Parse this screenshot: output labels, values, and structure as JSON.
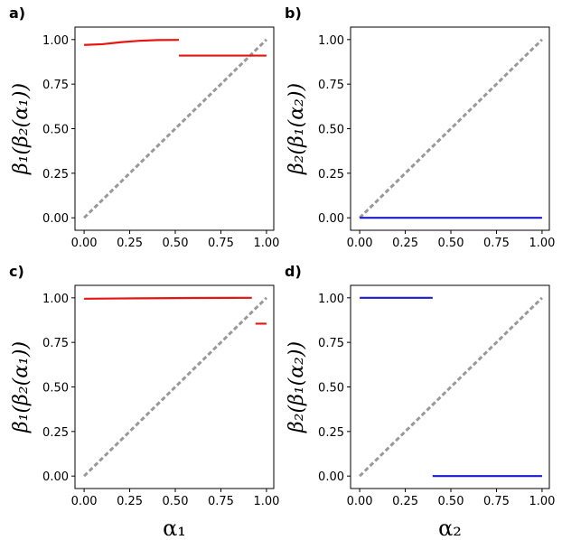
{
  "chart_data": [
    {
      "type": "line",
      "title": "a)",
      "ylabel": "β₁(β₂(α₁))",
      "xlim": [
        -0.05,
        1.04
      ],
      "ylim": [
        -0.07,
        1.07
      ],
      "xticks": [
        {
          "value": 0,
          "label": "0.00"
        },
        {
          "value": 0.25,
          "label": "0.25"
        },
        {
          "value": 0.5,
          "label": "0.50"
        },
        {
          "value": 0.75,
          "label": "0.75"
        },
        {
          "value": 1,
          "label": "1.00"
        }
      ],
      "yticks": [
        {
          "value": 0,
          "label": "0.00"
        },
        {
          "value": 0.25,
          "label": "0.25"
        },
        {
          "value": 0.5,
          "label": "0.50"
        },
        {
          "value": 0.75,
          "label": "0.75"
        },
        {
          "value": 1,
          "label": "1.00"
        }
      ],
      "series": [
        {
          "color": "#999999",
          "dashed": true,
          "x": [
            0,
            1
          ],
          "values": [
            0,
            1
          ]
        },
        {
          "color": "#e8140f",
          "dashed": false,
          "x": [
            0,
            0.1,
            0.2,
            0.3,
            0.4,
            0.52,
            0.52,
            0.52,
            1.0
          ],
          "values": [
            0.97,
            0.974,
            0.985,
            0.993,
            0.997,
            0.998,
            null,
            0.91,
            0.91
          ]
        }
      ]
    },
    {
      "type": "line",
      "title": "b)",
      "ylabel": "β₂(β₁(α₂))",
      "xlim": [
        -0.05,
        1.04
      ],
      "ylim": [
        -0.07,
        1.07
      ],
      "xticks": [
        {
          "value": 0,
          "label": "0.00"
        },
        {
          "value": 0.25,
          "label": "0.25"
        },
        {
          "value": 0.5,
          "label": "0.50"
        },
        {
          "value": 0.75,
          "label": "0.75"
        },
        {
          "value": 1,
          "label": "1.00"
        }
      ],
      "yticks": [
        {
          "value": 0,
          "label": "0.00"
        },
        {
          "value": 0.25,
          "label": "0.25"
        },
        {
          "value": 0.5,
          "label": "0.50"
        },
        {
          "value": 0.75,
          "label": "0.75"
        },
        {
          "value": 1,
          "label": "1.00"
        }
      ],
      "series": [
        {
          "color": "#999999",
          "dashed": true,
          "x": [
            0,
            1
          ],
          "values": [
            0,
            1
          ]
        },
        {
          "color": "#1c1ccc",
          "dashed": false,
          "x": [
            0,
            1
          ],
          "values": [
            0,
            0
          ]
        }
      ]
    },
    {
      "type": "line",
      "title": "c)",
      "ylabel": "β₁(β₂(α₁))",
      "xlabel": "α₁",
      "xlim": [
        -0.05,
        1.04
      ],
      "ylim": [
        -0.07,
        1.07
      ],
      "xticks": [
        {
          "value": 0,
          "label": "0.00"
        },
        {
          "value": 0.25,
          "label": "0.25"
        },
        {
          "value": 0.5,
          "label": "0.50"
        },
        {
          "value": 0.75,
          "label": "0.75"
        },
        {
          "value": 1,
          "label": "1.00"
        }
      ],
      "yticks": [
        {
          "value": 0,
          "label": "0.00"
        },
        {
          "value": 0.25,
          "label": "0.25"
        },
        {
          "value": 0.5,
          "label": "0.50"
        },
        {
          "value": 0.75,
          "label": "0.75"
        },
        {
          "value": 1,
          "label": "1.00"
        }
      ],
      "series": [
        {
          "color": "#999999",
          "dashed": true,
          "x": [
            0,
            1
          ],
          "values": [
            0,
            1
          ]
        },
        {
          "color": "#e8140f",
          "dashed": false,
          "x": [
            0,
            0.3,
            0.6,
            0.92,
            0.92,
            0.94,
            1.0
          ],
          "values": [
            0.995,
            0.997,
            0.999,
            1.0,
            null,
            0.855,
            0.855
          ]
        }
      ]
    },
    {
      "type": "line",
      "title": "d)",
      "ylabel": "β₂(β₁(α₂))",
      "xlabel": "α₂",
      "xlim": [
        -0.05,
        1.04
      ],
      "ylim": [
        -0.07,
        1.07
      ],
      "xticks": [
        {
          "value": 0,
          "label": "0.00"
        },
        {
          "value": 0.25,
          "label": "0.25"
        },
        {
          "value": 0.5,
          "label": "0.50"
        },
        {
          "value": 0.75,
          "label": "0.75"
        },
        {
          "value": 1,
          "label": "1.00"
        }
      ],
      "yticks": [
        {
          "value": 0,
          "label": "0.00"
        },
        {
          "value": 0.25,
          "label": "0.25"
        },
        {
          "value": 0.5,
          "label": "0.50"
        },
        {
          "value": 0.75,
          "label": "0.75"
        },
        {
          "value": 1,
          "label": "1.00"
        }
      ],
      "series": [
        {
          "color": "#999999",
          "dashed": true,
          "x": [
            0,
            1
          ],
          "values": [
            0,
            1
          ]
        },
        {
          "color": "#1c1ccc",
          "dashed": false,
          "x": [
            0,
            0.4,
            0.4,
            0.4,
            1.0
          ],
          "values": [
            1,
            1,
            null,
            0,
            0
          ]
        }
      ]
    }
  ]
}
